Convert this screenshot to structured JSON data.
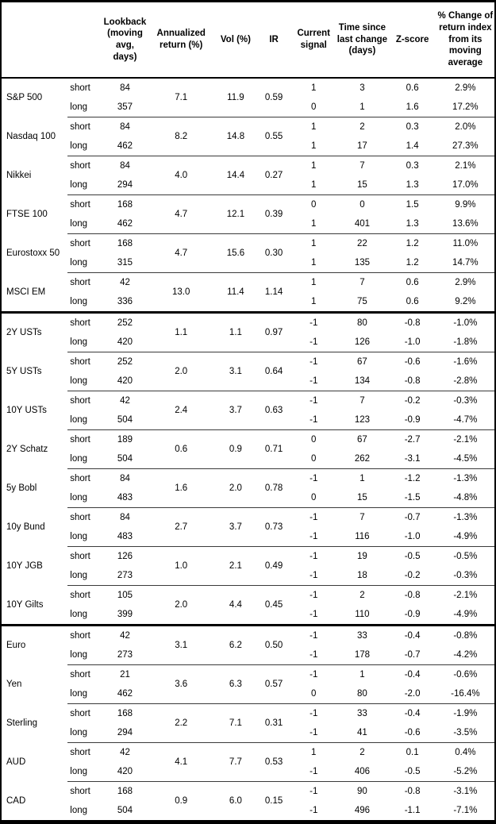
{
  "chart_data": {
    "type": "table",
    "columns": [
      "",
      "",
      "Lookback (moving avg, days)",
      "Annualized return (%)",
      "Vol (%)",
      "IR",
      "Current signal",
      "Time since last change (days)",
      "Z-score",
      "% Change of return index from its moving average"
    ],
    "sections": [
      {
        "groups": [
          {
            "name": "S&P 500",
            "annualized_return": "7.1",
            "vol": "11.9",
            "ir": "0.59",
            "rows": [
              {
                "horizon": "short",
                "lookback": "84",
                "signal": "1",
                "time_since": "3",
                "z_score": "0.6",
                "pct_change": "2.9%"
              },
              {
                "horizon": "long",
                "lookback": "357",
                "signal": "0",
                "time_since": "1",
                "z_score": "1.6",
                "pct_change": "17.2%"
              }
            ]
          },
          {
            "name": "Nasdaq 100",
            "annualized_return": "8.2",
            "vol": "14.8",
            "ir": "0.55",
            "rows": [
              {
                "horizon": "short",
                "lookback": "84",
                "signal": "1",
                "time_since": "2",
                "z_score": "0.3",
                "pct_change": "2.0%"
              },
              {
                "horizon": "long",
                "lookback": "462",
                "signal": "1",
                "time_since": "17",
                "z_score": "1.4",
                "pct_change": "27.3%"
              }
            ]
          },
          {
            "name": "Nikkei",
            "annualized_return": "4.0",
            "vol": "14.4",
            "ir": "0.27",
            "rows": [
              {
                "horizon": "short",
                "lookback": "84",
                "signal": "1",
                "time_since": "7",
                "z_score": "0.3",
                "pct_change": "2.1%"
              },
              {
                "horizon": "long",
                "lookback": "294",
                "signal": "1",
                "time_since": "15",
                "z_score": "1.3",
                "pct_change": "17.0%"
              }
            ]
          },
          {
            "name": "FTSE 100",
            "annualized_return": "4.7",
            "vol": "12.1",
            "ir": "0.39",
            "rows": [
              {
                "horizon": "short",
                "lookback": "168",
                "signal": "0",
                "time_since": "0",
                "z_score": "1.5",
                "pct_change": "9.9%"
              },
              {
                "horizon": "long",
                "lookback": "462",
                "signal": "1",
                "time_since": "401",
                "z_score": "1.3",
                "pct_change": "13.6%"
              }
            ]
          },
          {
            "name": "Eurostoxx 50",
            "annualized_return": "4.7",
            "vol": "15.6",
            "ir": "0.30",
            "rows": [
              {
                "horizon": "short",
                "lookback": "168",
                "signal": "1",
                "time_since": "22",
                "z_score": "1.2",
                "pct_change": "11.0%"
              },
              {
                "horizon": "long",
                "lookback": "315",
                "signal": "1",
                "time_since": "135",
                "z_score": "1.2",
                "pct_change": "14.7%"
              }
            ]
          },
          {
            "name": "MSCI EM",
            "annualized_return": "13.0",
            "vol": "11.4",
            "ir": "1.14",
            "rows": [
              {
                "horizon": "short",
                "lookback": "42",
                "signal": "1",
                "time_since": "7",
                "z_score": "0.6",
                "pct_change": "2.9%"
              },
              {
                "horizon": "long",
                "lookback": "336",
                "signal": "1",
                "time_since": "75",
                "z_score": "0.6",
                "pct_change": "9.2%"
              }
            ]
          }
        ]
      },
      {
        "groups": [
          {
            "name": "2Y USTs",
            "annualized_return": "1.1",
            "vol": "1.1",
            "ir": "0.97",
            "rows": [
              {
                "horizon": "short",
                "lookback": "252",
                "signal": "-1",
                "time_since": "80",
                "z_score": "-0.8",
                "pct_change": "-1.0%"
              },
              {
                "horizon": "long",
                "lookback": "420",
                "signal": "-1",
                "time_since": "126",
                "z_score": "-1.0",
                "pct_change": "-1.8%"
              }
            ]
          },
          {
            "name": "5Y USTs",
            "annualized_return": "2.0",
            "vol": "3.1",
            "ir": "0.64",
            "rows": [
              {
                "horizon": "short",
                "lookback": "252",
                "signal": "-1",
                "time_since": "67",
                "z_score": "-0.6",
                "pct_change": "-1.6%"
              },
              {
                "horizon": "long",
                "lookback": "420",
                "signal": "-1",
                "time_since": "134",
                "z_score": "-0.8",
                "pct_change": "-2.8%"
              }
            ]
          },
          {
            "name": "10Y USTs",
            "annualized_return": "2.4",
            "vol": "3.7",
            "ir": "0.63",
            "rows": [
              {
                "horizon": "short",
                "lookback": "42",
                "signal": "-1",
                "time_since": "7",
                "z_score": "-0.2",
                "pct_change": "-0.3%"
              },
              {
                "horizon": "long",
                "lookback": "504",
                "signal": "-1",
                "time_since": "123",
                "z_score": "-0.9",
                "pct_change": "-4.7%"
              }
            ]
          },
          {
            "name": "2Y Schatz",
            "annualized_return": "0.6",
            "vol": "0.9",
            "ir": "0.71",
            "rows": [
              {
                "horizon": "short",
                "lookback": "189",
                "signal": "0",
                "time_since": "67",
                "z_score": "-2.7",
                "pct_change": "-2.1%"
              },
              {
                "horizon": "long",
                "lookback": "504",
                "signal": "0",
                "time_since": "262",
                "z_score": "-3.1",
                "pct_change": "-4.5%"
              }
            ]
          },
          {
            "name": "5y Bobl",
            "annualized_return": "1.6",
            "vol": "2.0",
            "ir": "0.78",
            "rows": [
              {
                "horizon": "short",
                "lookback": "84",
                "signal": "-1",
                "time_since": "1",
                "z_score": "-1.2",
                "pct_change": "-1.3%"
              },
              {
                "horizon": "long",
                "lookback": "483",
                "signal": "0",
                "time_since": "15",
                "z_score": "-1.5",
                "pct_change": "-4.8%"
              }
            ]
          },
          {
            "name": "10y Bund",
            "annualized_return": "2.7",
            "vol": "3.7",
            "ir": "0.73",
            "rows": [
              {
                "horizon": "short",
                "lookback": "84",
                "signal": "-1",
                "time_since": "7",
                "z_score": "-0.7",
                "pct_change": "-1.3%"
              },
              {
                "horizon": "long",
                "lookback": "483",
                "signal": "-1",
                "time_since": "116",
                "z_score": "-1.0",
                "pct_change": "-4.9%"
              }
            ]
          },
          {
            "name": "10Y JGB",
            "annualized_return": "1.0",
            "vol": "2.1",
            "ir": "0.49",
            "rows": [
              {
                "horizon": "short",
                "lookback": "126",
                "signal": "-1",
                "time_since": "19",
                "z_score": "-0.5",
                "pct_change": "-0.5%"
              },
              {
                "horizon": "long",
                "lookback": "273",
                "signal": "-1",
                "time_since": "18",
                "z_score": "-0.2",
                "pct_change": "-0.3%"
              }
            ]
          },
          {
            "name": "10Y Gilts",
            "annualized_return": "2.0",
            "vol": "4.4",
            "ir": "0.45",
            "rows": [
              {
                "horizon": "short",
                "lookback": "105",
                "signal": "-1",
                "time_since": "2",
                "z_score": "-0.8",
                "pct_change": "-2.1%"
              },
              {
                "horizon": "long",
                "lookback": "399",
                "signal": "-1",
                "time_since": "110",
                "z_score": "-0.9",
                "pct_change": "-4.9%"
              }
            ]
          }
        ]
      },
      {
        "groups": [
          {
            "name": "Euro",
            "annualized_return": "3.1",
            "vol": "6.2",
            "ir": "0.50",
            "rows": [
              {
                "horizon": "short",
                "lookback": "42",
                "signal": "-1",
                "time_since": "33",
                "z_score": "-0.4",
                "pct_change": "-0.8%"
              },
              {
                "horizon": "long",
                "lookback": "273",
                "signal": "-1",
                "time_since": "178",
                "z_score": "-0.7",
                "pct_change": "-4.2%"
              }
            ]
          },
          {
            "name": "Yen",
            "annualized_return": "3.6",
            "vol": "6.3",
            "ir": "0.57",
            "rows": [
              {
                "horizon": "short",
                "lookback": "21",
                "signal": "-1",
                "time_since": "1",
                "z_score": "-0.4",
                "pct_change": "-0.6%"
              },
              {
                "horizon": "long",
                "lookback": "462",
                "signal": "0",
                "time_since": "80",
                "z_score": "-2.0",
                "pct_change": "-16.4%"
              }
            ]
          },
          {
            "name": "Sterling",
            "annualized_return": "2.2",
            "vol": "7.1",
            "ir": "0.31",
            "rows": [
              {
                "horizon": "short",
                "lookback": "168",
                "signal": "-1",
                "time_since": "33",
                "z_score": "-0.4",
                "pct_change": "-1.9%"
              },
              {
                "horizon": "long",
                "lookback": "294",
                "signal": "-1",
                "time_since": "41",
                "z_score": "-0.6",
                "pct_change": "-3.5%"
              }
            ]
          },
          {
            "name": "AUD",
            "annualized_return": "4.1",
            "vol": "7.7",
            "ir": "0.53",
            "rows": [
              {
                "horizon": "short",
                "lookback": "42",
                "signal": "1",
                "time_since": "2",
                "z_score": "0.1",
                "pct_change": "0.4%"
              },
              {
                "horizon": "long",
                "lookback": "420",
                "signal": "-1",
                "time_since": "406",
                "z_score": "-0.5",
                "pct_change": "-5.2%"
              }
            ]
          },
          {
            "name": "CAD",
            "annualized_return": "0.9",
            "vol": "6.0",
            "ir": "0.15",
            "rows": [
              {
                "horizon": "short",
                "lookback": "168",
                "signal": "-1",
                "time_since": "90",
                "z_score": "-0.8",
                "pct_change": "-3.1%"
              },
              {
                "horizon": "long",
                "lookback": "504",
                "signal": "-1",
                "time_since": "496",
                "z_score": "-1.1",
                "pct_change": "-7.1%"
              }
            ]
          }
        ]
      }
    ]
  }
}
